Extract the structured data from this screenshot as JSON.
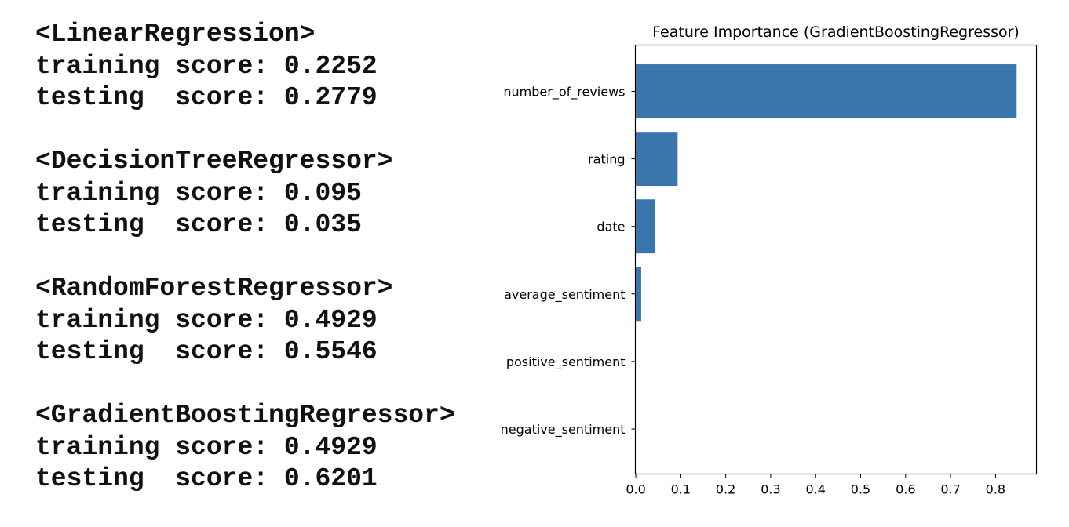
{
  "console": {
    "models": [
      {
        "name": "<LinearRegression>",
        "training": "training score: 0.2252",
        "testing": "testing  score: 0.2779"
      },
      {
        "name": "<DecisionTreeRegressor>",
        "training": "training score: 0.095",
        "testing": "testing  score: 0.035"
      },
      {
        "name": "<RandomForestRegressor>",
        "training": "training score: 0.4929",
        "testing": "testing  score: 0.5546"
      },
      {
        "name": "<GradientBoostingRegressor>",
        "training": "training score: 0.4929",
        "testing": "testing  score: 0.6201"
      }
    ]
  },
  "chart_data": {
    "type": "bar",
    "orientation": "horizontal",
    "title": "Feature Importance (GradientBoostingRegressor)",
    "xlabel": "",
    "ylabel": "",
    "categories": [
      "number_of_reviews",
      "rating",
      "date",
      "average_sentiment",
      "positive_sentiment",
      "negative_sentiment"
    ],
    "values": [
      0.847,
      0.093,
      0.042,
      0.012,
      0.0,
      0.0
    ],
    "xlim": [
      -0.001,
      0.891
    ],
    "xticks": [
      0.0,
      0.1,
      0.2,
      0.3,
      0.4,
      0.5,
      0.6,
      0.7,
      0.8
    ],
    "xtick_labels": [
      "0.0",
      "0.1",
      "0.2",
      "0.3",
      "0.4",
      "0.5",
      "0.6",
      "0.7",
      "0.8"
    ],
    "bar_color": "#3a76ab",
    "grid": false,
    "legend": "none"
  }
}
